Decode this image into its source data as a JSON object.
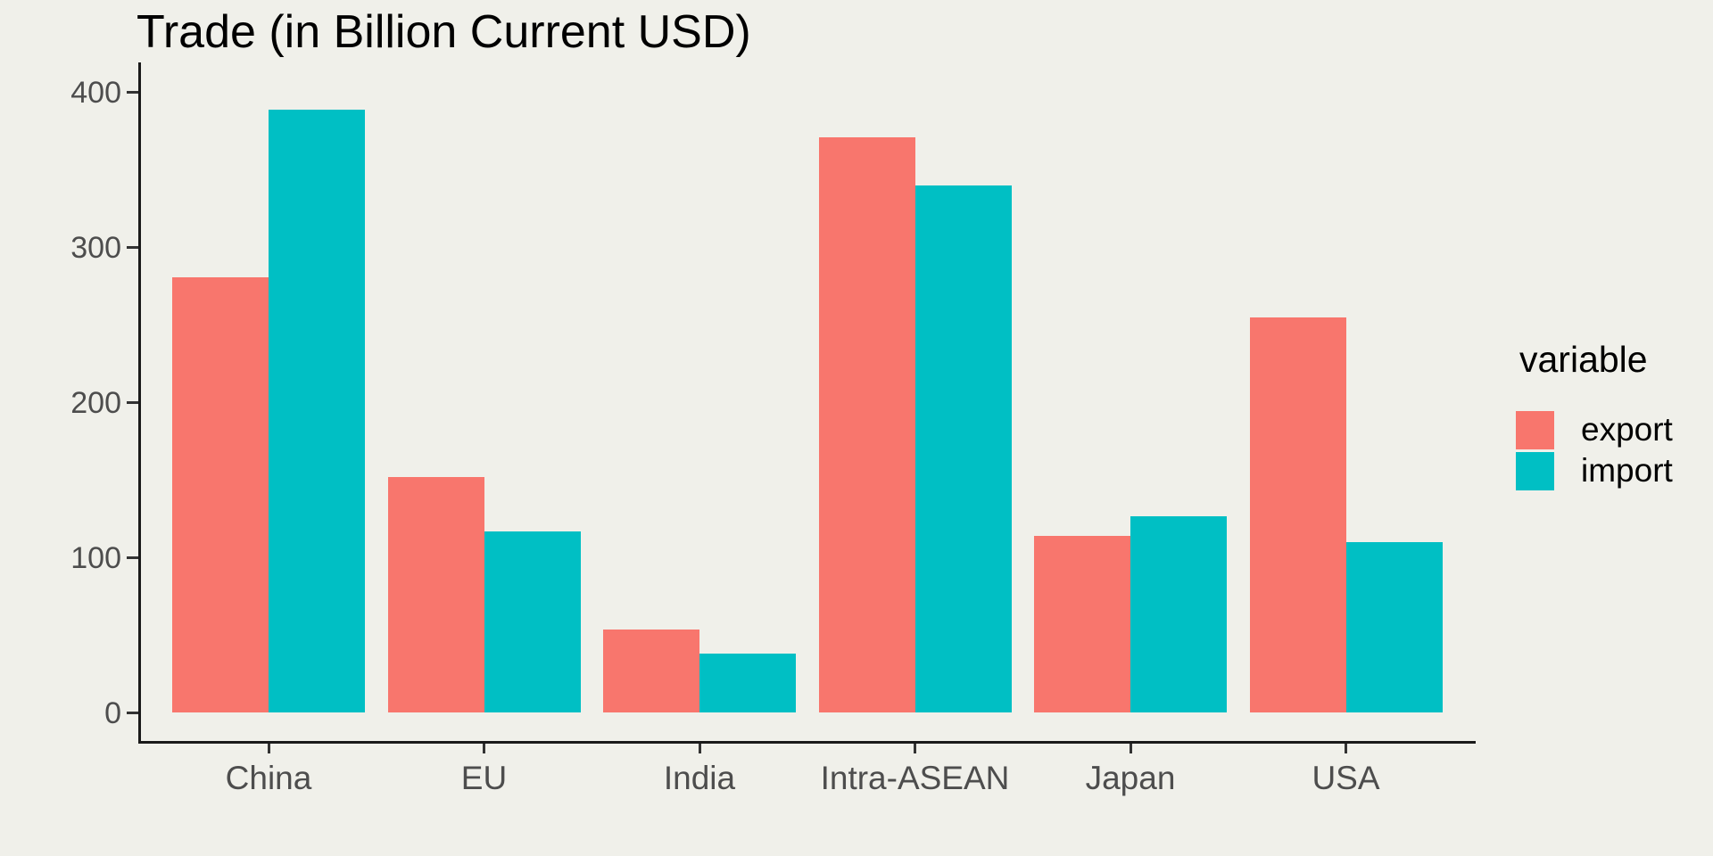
{
  "chart": {
    "title": "Trade (in Billion Current USD)",
    "background_color": "#F0F0EA",
    "axis_line_color": "#1A1A1A",
    "tick_color": "#333333",
    "axis_text_color": "#4D4D4D",
    "title_color": "#000000"
  },
  "legend": {
    "title": "variable",
    "position": "right",
    "items": [
      {
        "label": "export",
        "color": "#F8766D"
      },
      {
        "label": "import",
        "color": "#00BFC4"
      }
    ]
  },
  "chart_data": {
    "type": "bar",
    "title": "Trade (in Billion Current USD)",
    "categories": [
      "China",
      "EU",
      "India",
      "Intra-ASEAN",
      "Japan",
      "USA"
    ],
    "series": [
      {
        "name": "export",
        "color": "#F8766D",
        "values": [
          281,
          152,
          54,
          371,
          114,
          255
        ]
      },
      {
        "name": "import",
        "color": "#00BFC4",
        "values": [
          389,
          117,
          38,
          340,
          127,
          110
        ]
      }
    ],
    "xlabel": "",
    "ylabel": "",
    "ylim": [
      0,
      400
    ],
    "yticks": [
      0,
      100,
      200,
      300,
      400
    ],
    "grid": false,
    "legend_title": "variable",
    "legend_position": "right"
  }
}
